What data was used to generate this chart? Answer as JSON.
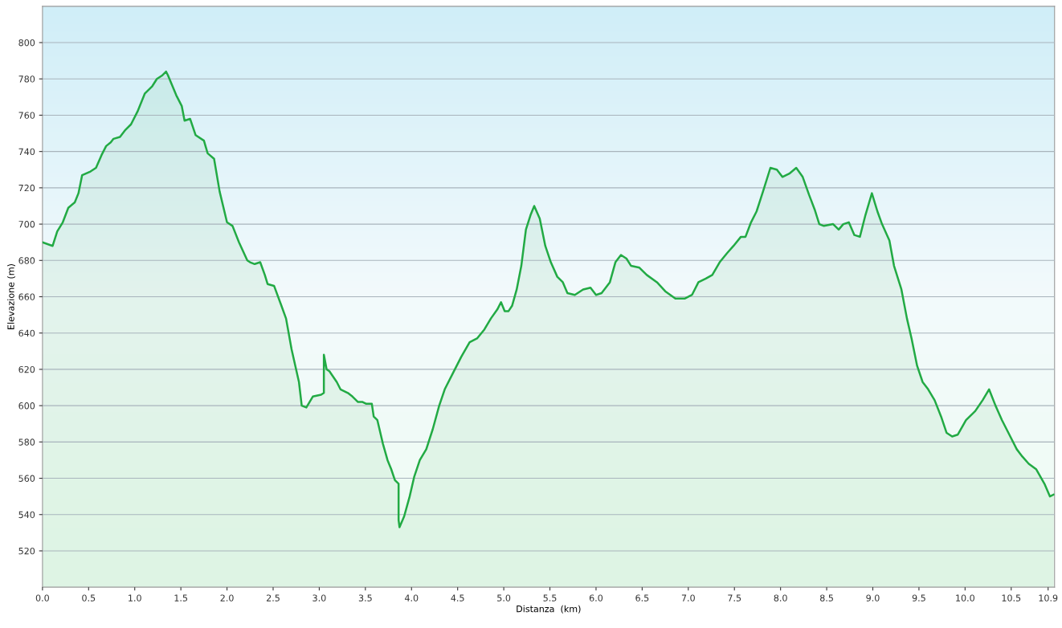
{
  "chart_data": {
    "type": "area",
    "xlabel": "Distanza  (km)",
    "ylabel": "Elevazione (m)",
    "xlim": [
      0,
      10.97
    ],
    "ylim": [
      500,
      820
    ],
    "xticks": [
      {
        "value": 0,
        "label": "0.0"
      },
      0.5,
      {
        "value": 1,
        "label": "1.0"
      },
      1.5,
      {
        "value": 2,
        "label": "2.0"
      },
      2.5,
      {
        "value": 3,
        "label": "3.0"
      },
      3.5,
      {
        "value": 4,
        "label": "4.0"
      },
      4.5,
      {
        "value": 5,
        "label": "5.0"
      },
      5.5,
      {
        "value": 6,
        "label": "6.0"
      },
      6.5,
      {
        "value": 7,
        "label": "7.0"
      },
      7.5,
      {
        "value": 8,
        "label": "8.0"
      },
      8.5,
      {
        "value": 9,
        "label": "9.0"
      },
      9.5,
      {
        "value": 10,
        "label": "10.0"
      },
      10.5,
      10.9
    ],
    "yticks": [
      520,
      540,
      560,
      580,
      600,
      620,
      640,
      660,
      680,
      700,
      720,
      740,
      760,
      780,
      800
    ],
    "grid": "y",
    "series": [
      {
        "color": "#22aa44",
        "x": [
          0.0,
          0.11,
          0.16,
          0.22,
          0.28,
          0.35,
          0.39,
          0.43,
          0.52,
          0.58,
          0.64,
          0.69,
          0.74,
          0.77,
          0.84,
          0.9,
          0.96,
          1.03,
          1.11,
          1.19,
          1.24,
          1.3,
          1.34,
          1.36,
          1.45,
          1.51,
          1.54,
          1.6,
          1.66,
          1.75,
          1.79,
          1.86,
          1.92,
          2.0,
          2.06,
          2.13,
          2.22,
          2.25,
          2.3,
          2.36,
          2.41,
          2.44,
          2.51,
          2.59,
          2.64,
          2.7,
          2.78,
          2.81,
          2.86,
          2.93,
          3.02,
          3.05,
          3.05,
          3.08,
          3.11,
          3.19,
          3.23,
          3.31,
          3.36,
          3.42,
          3.47,
          3.51,
          3.57,
          3.59,
          3.63,
          3.69,
          3.74,
          3.78,
          3.82,
          3.86,
          3.86,
          3.87,
          3.92,
          3.98,
          4.03,
          4.09,
          4.16,
          4.23,
          4.3,
          4.36,
          4.45,
          4.54,
          4.63,
          4.71,
          4.79,
          4.86,
          4.93,
          4.97,
          5.01,
          5.05,
          5.09,
          5.14,
          5.19,
          5.24,
          5.29,
          5.33,
          5.39,
          5.45,
          5.51,
          5.58,
          5.64,
          5.69,
          5.77,
          5.86,
          5.94,
          6.0,
          6.06,
          6.15,
          6.21,
          6.27,
          6.33,
          6.38,
          6.47,
          6.55,
          6.66,
          6.75,
          6.86,
          6.96,
          7.04,
          7.11,
          7.19,
          7.26,
          7.34,
          7.42,
          7.49,
          7.57,
          7.62,
          7.68,
          7.74,
          7.81,
          7.89,
          7.96,
          8.02,
          8.1,
          8.17,
          8.24,
          8.31,
          8.37,
          8.42,
          8.47,
          8.57,
          8.63,
          8.68,
          8.74,
          8.8,
          8.86,
          8.92,
          8.99,
          9.05,
          9.1,
          9.18,
          9.23,
          9.31,
          9.37,
          9.42,
          9.48,
          9.54,
          9.6,
          9.67,
          9.74,
          9.8,
          9.86,
          9.92,
          10.01,
          10.11,
          10.19,
          10.26,
          10.33,
          10.4,
          10.47,
          10.56,
          10.62,
          10.69,
          10.77,
          10.86,
          10.92,
          10.96
        ],
        "values": [
          690,
          688,
          696,
          701,
          709,
          712,
          717,
          727,
          729,
          731,
          738,
          743,
          745,
          747,
          748,
          752,
          755,
          762,
          772,
          776,
          780,
          782,
          784,
          782,
          771,
          765,
          757,
          758,
          749,
          746,
          739,
          736,
          718,
          701,
          699,
          690,
          680,
          679,
          678,
          679,
          672,
          667,
          666,
          655,
          648,
          631,
          613,
          600,
          599,
          605,
          606,
          607,
          628,
          620,
          619,
          613,
          609,
          607,
          605,
          602,
          602,
          601,
          601,
          594,
          592,
          579,
          570,
          565,
          559,
          557,
          537,
          533,
          539,
          550,
          561,
          570,
          576,
          587,
          600,
          609,
          618,
          627,
          635,
          637,
          642,
          648,
          653,
          657,
          652,
          652,
          655,
          664,
          677,
          697,
          705,
          710,
          703,
          688,
          679,
          671,
          668,
          662,
          661,
          664,
          665,
          661,
          662,
          668,
          679,
          683,
          681,
          677,
          676,
          672,
          668,
          663,
          659,
          659,
          661,
          668,
          670,
          672,
          679,
          684,
          688,
          693,
          693,
          701,
          707,
          718,
          731,
          730,
          726,
          728,
          731,
          726,
          716,
          708,
          700,
          699,
          700,
          697,
          700,
          701,
          694,
          693,
          705,
          717,
          707,
          700,
          691,
          677,
          664,
          648,
          637,
          622,
          613,
          609,
          603,
          594,
          585,
          583,
          584,
          592,
          597,
          603,
          609,
          600,
          592,
          585,
          576,
          572,
          568,
          565,
          557,
          550,
          551
        ]
      }
    ]
  }
}
